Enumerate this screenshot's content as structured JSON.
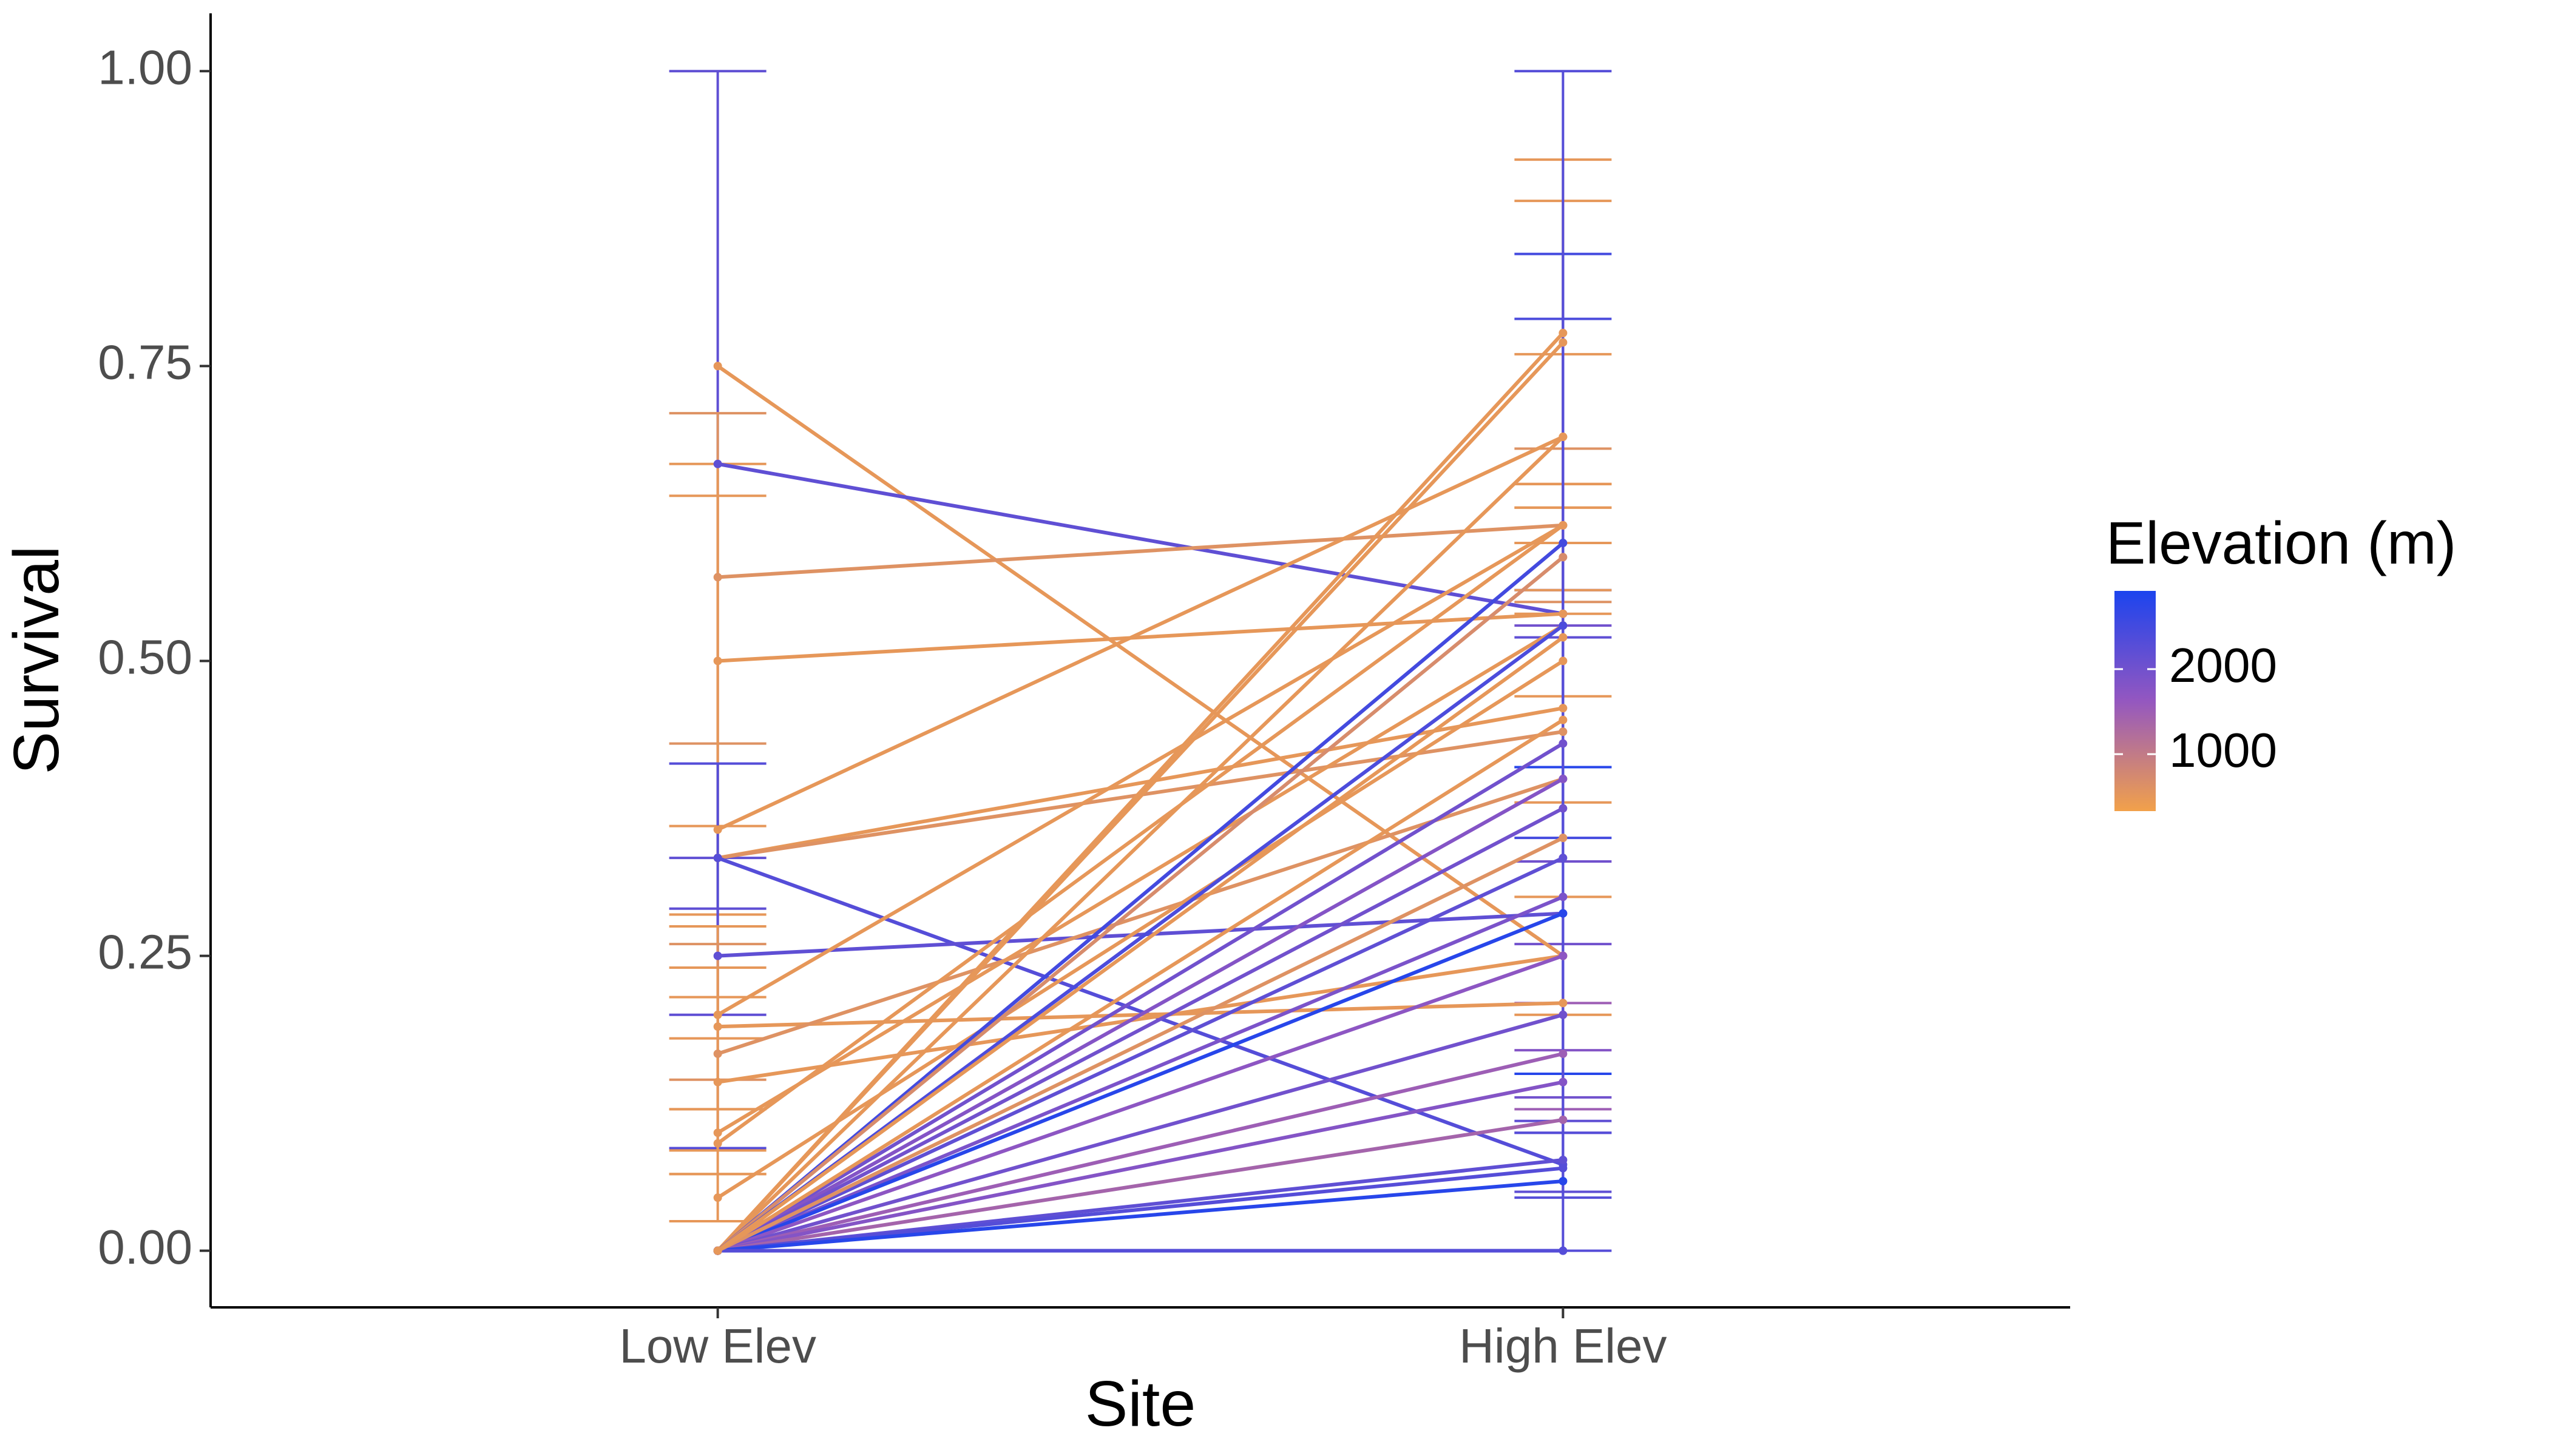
{
  "chart_data": {
    "type": "line",
    "x_label": "Site",
    "y_label": "Survival",
    "categories": [
      "Low Elev",
      "High Elev"
    ],
    "ylim": [
      -0.048,
      1.049
    ],
    "yticks": [
      {
        "value": 0,
        "label": "0.00"
      },
      {
        "value": 0.25,
        "label": "0.25"
      },
      {
        "value": 0.5,
        "label": "0.50"
      },
      {
        "value": 0.75,
        "label": "0.75"
      },
      {
        "value": 1,
        "label": "1.00"
      }
    ],
    "color_scale": {
      "title": "Elevation (m)",
      "lim": [
        330,
        2920
      ],
      "ticks": [
        1000,
        2000
      ],
      "colors": [
        "#f2a14a",
        "#9457c0",
        "#1c44ee"
      ]
    },
    "series": [
      {
        "elevation": 500,
        "values": [
          0.75,
          0.25
        ],
        "ci": [
          null,
          [
            0.2,
            0.3
          ]
        ]
      },
      {
        "elevation": 2200,
        "values": [
          0.667,
          0.54
        ],
        "ci": [
          [
            0.333,
            1.0
          ],
          [
            0.52,
            0.56
          ]
        ]
      },
      {
        "elevation": 600,
        "values": [
          0.571,
          0.615
        ],
        "ci": [
          [
            0.43,
            0.71
          ],
          [
            0.55,
            0.68
          ]
        ]
      },
      {
        "elevation": 500,
        "values": [
          0.5,
          0.54
        ],
        "ci": [
          [
            0.36,
            0.64
          ],
          null
        ]
      },
      {
        "elevation": 500,
        "values": [
          0.357,
          0.69
        ],
        "ci": [
          null,
          [
            0.63,
            0.76
          ]
        ]
      },
      {
        "elevation": 500,
        "values": [
          0.333,
          0.46
        ],
        "ci": [
          [
            0.285,
            0.667
          ],
          [
            0.38,
            0.54
          ]
        ]
      },
      {
        "elevation": 600,
        "values": [
          0.333,
          0.44
        ],
        "ci": [
          null,
          null
        ]
      },
      {
        "elevation": 2300,
        "values": [
          0.333,
          0.073
        ],
        "ci": [
          [
            0.087,
            0.413
          ],
          null
        ]
      },
      {
        "elevation": 2200,
        "values": [
          0.25,
          0.286
        ],
        "ci": [
          [
            0.2,
            0.29
          ],
          null
        ]
      },
      {
        "elevation": 500,
        "values": [
          0.2,
          0.615
        ],
        "ci": [
          [
            0.18,
            0.275
          ],
          [
            0.6,
            0.65
          ]
        ]
      },
      {
        "elevation": 500,
        "values": [
          0.19,
          0.21
        ],
        "ci": [
          null,
          null
        ]
      },
      {
        "elevation": 600,
        "values": [
          0.167,
          0.4
        ],
        "ci": [
          [
            0.145,
            0.26
          ],
          null
        ]
      },
      {
        "elevation": 500,
        "values": [
          0.143,
          0.25
        ],
        "ci": [
          [
            0.12,
            0.215
          ],
          null
        ]
      },
      {
        "elevation": 500,
        "values": [
          0.1,
          0.53
        ],
        "ci": [
          [
            0.085,
            0.24
          ],
          [
            0.47,
            0.6
          ]
        ]
      },
      {
        "elevation": 500,
        "values": [
          0.091,
          0.615
        ],
        "ci": [
          [
            0.065,
            0.12
          ],
          [
            0.56,
            0.65
          ]
        ]
      },
      {
        "elevation": 500,
        "values": [
          0.045,
          0.5
        ],
        "ci": [
          [
            0.025,
            0.065
          ],
          null
        ]
      },
      {
        "elevation": 500,
        "values": [
          0,
          0.778
        ],
        "ci": [
          null,
          [
            0.63,
            0.925
          ]
        ]
      },
      {
        "elevation": 500,
        "values": [
          0,
          0.77
        ],
        "ci": [
          null,
          [
            0.65,
            0.89
          ]
        ]
      },
      {
        "elevation": 500,
        "values": [
          0,
          0.69
        ],
        "ci": [
          null,
          null
        ]
      },
      {
        "elevation": 2500,
        "values": [
          0,
          0.6
        ],
        "ci": [
          null,
          [
            0.35,
            0.845
          ]
        ]
      },
      {
        "elevation": 700,
        "values": [
          0,
          0.588
        ],
        "ci": [
          null,
          null
        ]
      },
      {
        "elevation": 2400,
        "values": [
          0,
          0.53
        ],
        "ci": [
          null,
          [
            0.41,
            0.79
          ]
        ]
      },
      {
        "elevation": 500,
        "values": [
          0,
          0.52
        ],
        "ci": [
          null,
          null
        ]
      },
      {
        "elevation": 2000,
        "values": [
          0,
          0.43
        ],
        "ci": [
          null,
          [
            0.33,
            0.53
          ]
        ]
      },
      {
        "elevation": 1800,
        "values": [
          0,
          0.4
        ],
        "ci": [
          null,
          null
        ]
      },
      {
        "elevation": 2000,
        "values": [
          0,
          0.375
        ],
        "ci": [
          null,
          null
        ]
      },
      {
        "elevation": 2200,
        "values": [
          0,
          0.333
        ],
        "ci": [
          null,
          null
        ]
      },
      {
        "elevation": 1900,
        "values": [
          0,
          0.3
        ],
        "ci": [
          null,
          null
        ]
      },
      {
        "elevation": 2800,
        "values": [
          0,
          0.286
        ],
        "ci": [
          null,
          [
            0.15,
            0.41
          ]
        ]
      },
      {
        "elevation": 1700,
        "values": [
          0,
          0.25
        ],
        "ci": [
          null,
          null
        ]
      },
      {
        "elevation": 2000,
        "values": [
          0,
          0.2
        ],
        "ci": [
          null,
          [
            0.13,
            0.26
          ]
        ]
      },
      {
        "elevation": 1500,
        "values": [
          0,
          0.167
        ],
        "ci": [
          null,
          [
            0.12,
            0.21
          ]
        ]
      },
      {
        "elevation": 1800,
        "values": [
          0,
          0.143
        ],
        "ci": [
          null,
          [
            0.1,
            0.17
          ]
        ]
      },
      {
        "elevation": 1400,
        "values": [
          0,
          0.111
        ],
        "ci": [
          null,
          null
        ]
      },
      {
        "elevation": 2200,
        "values": [
          0,
          0.077
        ],
        "ci": [
          null,
          [
            0.05,
            0.11
          ]
        ]
      },
      {
        "elevation": 2300,
        "values": [
          0,
          0.07
        ],
        "ci": [
          null,
          [
            0.045,
            0.1
          ]
        ]
      },
      {
        "elevation": 2800,
        "values": [
          0,
          0.059
        ],
        "ci": [
          null,
          null
        ]
      },
      {
        "elevation": 2300,
        "values": [
          0,
          0
        ],
        "ci": [
          null,
          [
            0,
            1.0
          ]
        ]
      },
      {
        "elevation": 600,
        "values": [
          0,
          0.35
        ],
        "ci": [
          null,
          null
        ]
      },
      {
        "elevation": 500,
        "values": [
          0,
          0.45
        ],
        "ci": [
          null,
          null
        ]
      }
    ]
  }
}
